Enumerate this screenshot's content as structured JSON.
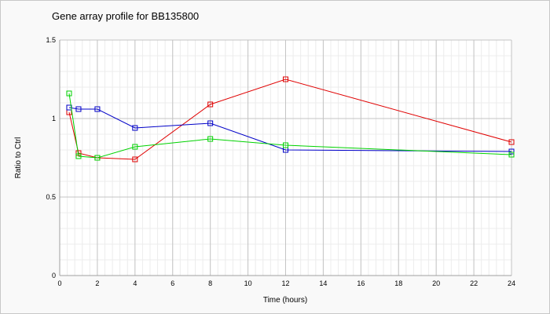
{
  "chart_data": {
    "type": "line",
    "title": "Gene array profile for BB135800",
    "xlabel": "Time (hours)",
    "ylabel": "Ratio to Ctrl",
    "xlim": [
      0,
      24
    ],
    "ylim": [
      0,
      1.5
    ],
    "x_ticks": [
      0,
      2,
      4,
      6,
      8,
      10,
      12,
      14,
      16,
      18,
      20,
      22,
      24
    ],
    "x_tick_labels": [
      "0",
      "2",
      "4",
      "6",
      "8",
      "10",
      "12",
      "14",
      "16",
      "18",
      "20",
      "22",
      "24"
    ],
    "y_ticks": [
      0,
      0.5,
      1,
      1.5
    ],
    "y_tick_labels": [
      "0",
      "0.5",
      "1",
      "1.5"
    ],
    "grid": true,
    "legend": "none",
    "marker": "square",
    "series": [
      {
        "color": "#e00000",
        "x": [
          0.5,
          1,
          2,
          4,
          8,
          12,
          24
        ],
        "y": [
          1.04,
          0.78,
          0.75,
          0.74,
          1.09,
          1.25,
          0.85
        ]
      },
      {
        "color": "#0000c8",
        "x": [
          0.5,
          1,
          2,
          4,
          8,
          12,
          24
        ],
        "y": [
          1.07,
          1.06,
          1.06,
          0.94,
          0.97,
          0.8,
          0.79
        ]
      },
      {
        "color": "#00d200",
        "x": [
          0.5,
          1,
          2,
          4,
          8,
          12,
          24
        ],
        "y": [
          1.16,
          0.76,
          0.75,
          0.82,
          0.87,
          0.83,
          0.77
        ]
      }
    ]
  }
}
